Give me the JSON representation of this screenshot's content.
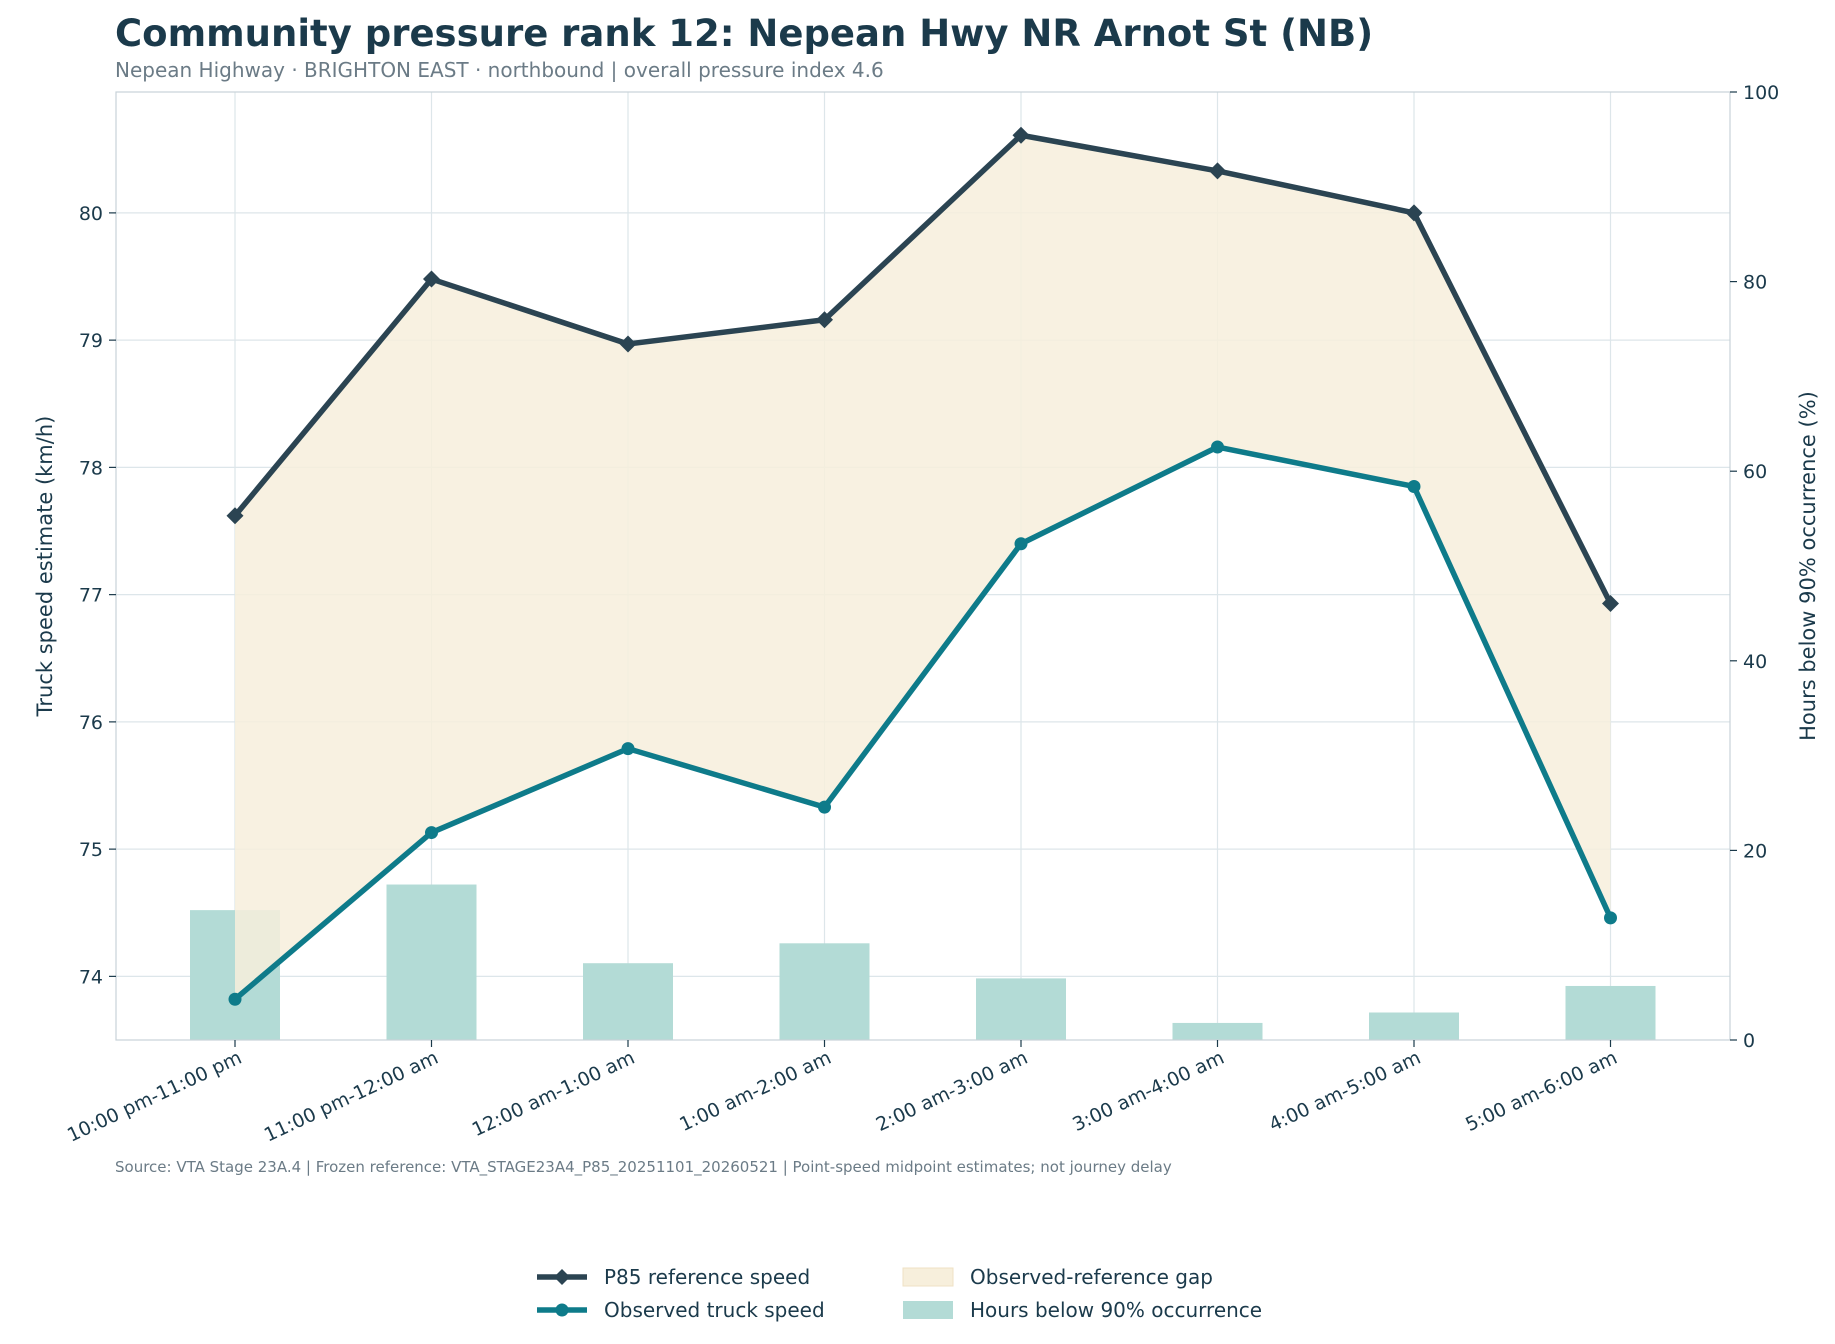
{
  "header": {
    "title": "Community pressure rank 12: Nepean Hwy NR Arnot St (NB)",
    "subtitle": "Nepean Highway · BRIGHTON EAST · northbound | overall pressure index 4.6"
  },
  "footer": {
    "source": "Source: VTA Stage 23A.4 | Frozen reference: VTA_STAGE23A4_P85_20251101_20260521 | Point-speed midpoint estimates; not journey delay"
  },
  "colors": {
    "title": "#1b3a4b",
    "subtitle": "#6b7b86",
    "reference": "#2b4452",
    "observed": "#0e7b8a",
    "gap_fill": "#f7efdc",
    "bars": "#b3dbd6",
    "grid": "#dde6ea",
    "axis": "#c8d2d8",
    "tick_text": "#1b3a4b"
  },
  "chart_data": {
    "type": "line",
    "categories": [
      "10:00 pm-11:00 pm",
      "11:00 pm-12:00 am",
      "12:00 am-1:00 am",
      "1:00 am-2:00 am",
      "2:00 am-3:00 am",
      "3:00 am-4:00 am",
      "4:00 am-5:00 am",
      "5:00 am-6:00 am"
    ],
    "series": [
      {
        "name": "P85 reference speed",
        "type": "line",
        "marker": "diamond",
        "axis": "left",
        "values": [
          77.62,
          79.48,
          78.97,
          79.16,
          80.61,
          80.33,
          80.0,
          76.93
        ]
      },
      {
        "name": "Observed truck speed",
        "type": "line",
        "marker": "circle",
        "axis": "left",
        "values": [
          73.82,
          75.13,
          75.79,
          75.33,
          77.4,
          78.16,
          77.85,
          74.46
        ]
      },
      {
        "name": "Observed-reference gap",
        "type": "area",
        "axis": "left"
      },
      {
        "name": "Hours below 90% occurrence",
        "type": "bar",
        "axis": "right",
        "values": [
          13.7,
          16.4,
          8.1,
          10.2,
          6.5,
          1.8,
          2.9,
          5.7
        ]
      }
    ],
    "ylabel": "Truck speed estimate (km/h)",
    "y2label": "Hours below 90% occurrence (%)",
    "ylim": [
      73.5,
      80.95
    ],
    "y2lim": [
      0,
      100
    ],
    "yticks": [
      74,
      75,
      76,
      77,
      78,
      79,
      80
    ],
    "y2ticks": [
      0,
      20,
      40,
      60,
      80,
      100
    ],
    "grid": true,
    "legend_position": "bottom-center"
  }
}
